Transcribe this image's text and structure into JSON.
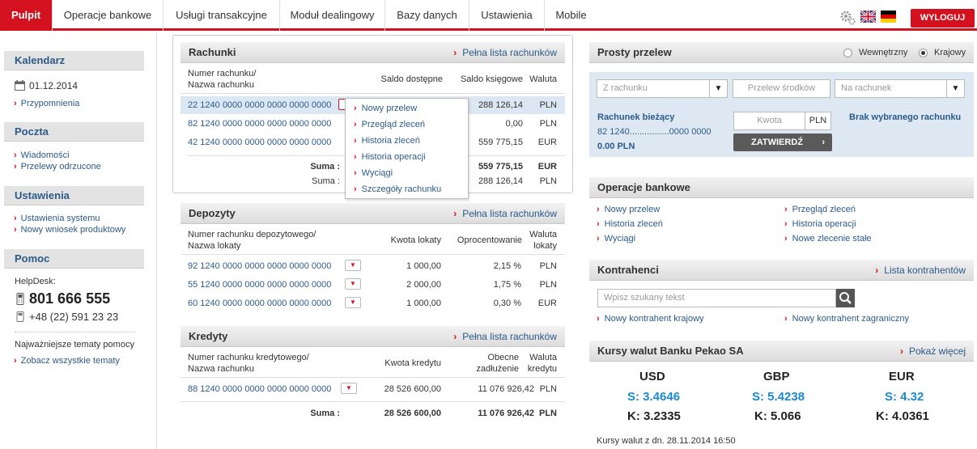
{
  "nav": {
    "tabs": [
      "Pulpit",
      "Operacje bankowe",
      "Usługi transakcyjne",
      "Moduł dealingowy",
      "Bazy danych",
      "Ustawienia",
      "Mobile"
    ],
    "logout_label": "WYLOGUJ"
  },
  "sidebar": {
    "calendar": {
      "title": "Kalendarz",
      "date": "01.12.2014",
      "link": "Przypomnienia"
    },
    "mail": {
      "title": "Poczta",
      "links": [
        "Wiadomości",
        "Przelewy odrzucone"
      ]
    },
    "settings": {
      "title": "Ustawienia",
      "links": [
        "Ustawienia systemu",
        "Nowy wniosek produktowy"
      ]
    },
    "help": {
      "title": "Pomoc",
      "helpdesk_label": "HelpDesk:",
      "phone_main": "801 666 555",
      "phone_alt": "+48 (22) 591 23 23",
      "topics_label": "Najważniejsze tematy pomocy",
      "topics_link": "Zobacz wszystkie tematy"
    }
  },
  "accounts": {
    "title": "Rachunki",
    "full_list": "Pełna lista rachunków",
    "col_number": "Numer rachunku/",
    "col_name": "Nazwa rachunku",
    "col_available": "Saldo dostępne",
    "col_book": "Saldo księgowe",
    "col_currency": "Waluta",
    "rows": [
      {
        "number": "22 1240 0000 0000 0000 0000 0000",
        "book": "288 126,14",
        "currency": "PLN"
      },
      {
        "number": "82 1240 0000 0000 0000 0000 0000",
        "book": "0,00",
        "currency": "PLN"
      },
      {
        "number": "42 1240 0000 0000 0000 0000 0000",
        "book": "559 775,15",
        "currency": "EUR"
      }
    ],
    "sums": [
      {
        "label": "Suma :",
        "book": "559 775,15",
        "currency": "EUR"
      },
      {
        "label": "Suma :",
        "book": "288 126,14",
        "currency": "PLN"
      }
    ],
    "menu": [
      "Nowy przelew",
      "Przegląd zleceń",
      "Historia zleceń",
      "Historia operacji",
      "Wyciągi",
      "Szczegóły rachunku"
    ]
  },
  "deposits": {
    "title": "Depozyty",
    "full_list": "Pełna lista rachunków",
    "col_number": "Numer rachunku depozytowego/",
    "col_name": "Nazwa lokaty",
    "col_amount": "Kwota lokaty",
    "col_rate": "Oprocentowanie",
    "col_currency1": "Waluta",
    "col_currency2": "lokaty",
    "rows": [
      {
        "number": "92 1240 0000 0000 0000 0000 0000",
        "amount": "1 000,00",
        "rate": "2,15 %",
        "currency": "PLN"
      },
      {
        "number": "55 1240 0000 0000 0000 0000 0000",
        "amount": "2 000,00",
        "rate": "1,75 %",
        "currency": "PLN"
      },
      {
        "number": "60 1240 0000 0000 0000 0000 0000",
        "amount": "1 000,00",
        "rate": "0,30 %",
        "currency": "EUR"
      }
    ]
  },
  "credits": {
    "title": "Kredyty",
    "full_list": "Pełna lista rachunków",
    "col_number": "Numer rachunku kredytowego/",
    "col_name": "Nazwa rachunku",
    "col_amount": "Kwota kredytu",
    "col_debt1": "Obecne",
    "col_debt2": "zadłużenie",
    "col_currency1": "Waluta",
    "col_currency2": "kredytu",
    "rows": [
      {
        "number": "88 1240 0000 0000 0000 0000 0000",
        "amount": "28 526 600,00",
        "debt": "11 076 926,42",
        "currency": "PLN"
      }
    ],
    "sum": {
      "label": "Suma :",
      "amount": "28 526 600,00",
      "debt": "11 076 926,42",
      "currency": "PLN"
    }
  },
  "transfer": {
    "title": "Prosty przelew",
    "opt_internal": "Wewnętrzny",
    "opt_domestic": "Krajowy",
    "from_placeholder": "Z rachunku",
    "transfer_label": "Przelew środków",
    "to_placeholder": "Na rachunek",
    "account_name": "Rachunek bieżący",
    "account_number": "82 1240................0000 0000",
    "account_balance": "0.00 PLN",
    "amount_placeholder": "Kwota",
    "currency": "PLN",
    "submit": "ZATWIERDŹ",
    "no_account": "Brak wybranego rachunku"
  },
  "operations": {
    "title": "Operacje bankowe",
    "links_left": [
      "Nowy przelew",
      "Historia zleceń",
      "Wyciągi"
    ],
    "links_right": [
      "Przegląd zleceń",
      "Historia operacji",
      "Nowe zlecenie stałe"
    ]
  },
  "contractors": {
    "title": "Kontrahenci",
    "list_link": "Lista kontrahentów",
    "search_placeholder": "Wpisz szukany tekst",
    "new_domestic": "Nowy kontrahent krajowy",
    "new_foreign": "Nowy kontrahent zagraniczny"
  },
  "rates": {
    "title": "Kursy walut Banku Pekao SA",
    "more": "Pokaż więcej",
    "currencies": [
      {
        "code": "USD",
        "sell": "S: 3.4646",
        "buy": "K: 3.2335"
      },
      {
        "code": "GBP",
        "sell": "S: 5.4238",
        "buy": "K: 5.066"
      },
      {
        "code": "EUR",
        "sell": "S: 4.32",
        "buy": "K: 4.0361"
      }
    ],
    "footer": "Kursy walut z dn. 28.11.2014 16:50"
  },
  "colors": {
    "brand": "#d4111e",
    "link": "#2c5a8a",
    "rate_blue": "#1a8ad4"
  }
}
